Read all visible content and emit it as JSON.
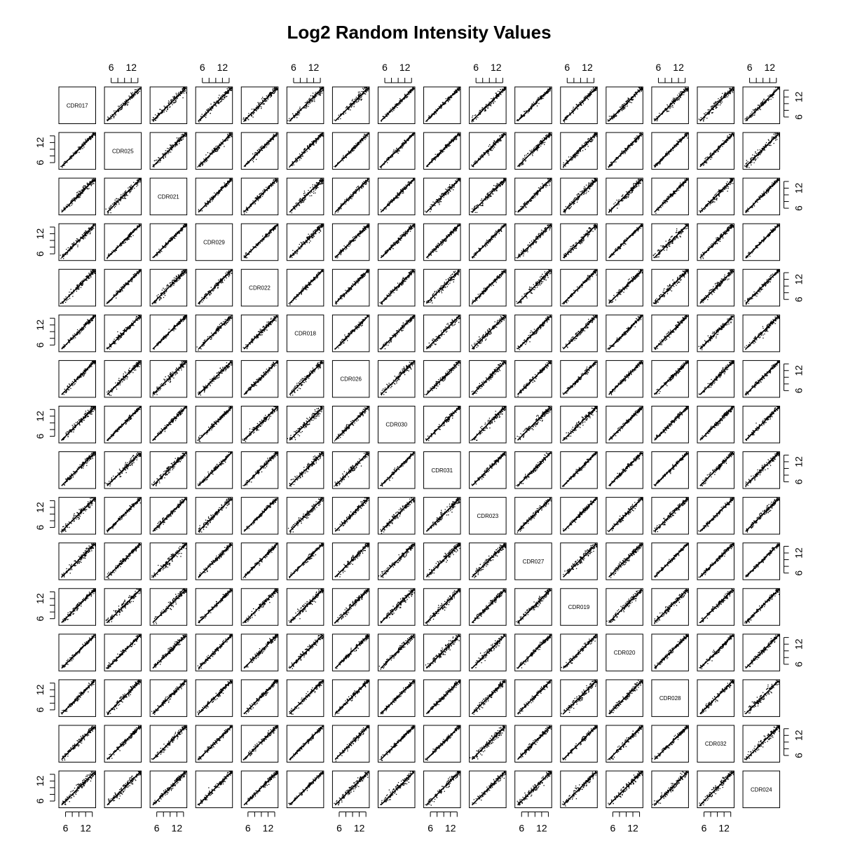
{
  "chart_data": {
    "type": "scatter",
    "title": "Log2 Random Intensity Values",
    "variables": [
      "CDR017",
      "CDR025",
      "CDR021",
      "CDR029",
      "CDR022",
      "CDR018",
      "CDR026",
      "CDR030",
      "CDR031",
      "CDR023",
      "CDR027",
      "CDR019",
      "CDR020",
      "CDR028",
      "CDR032",
      "CDR024"
    ],
    "axis_range": [
      4,
      15
    ],
    "axis_ticks": [
      6,
      8,
      10,
      12,
      14
    ],
    "axis_tick_labels": [
      {
        "value": 6,
        "label": "6"
      },
      {
        "value": 12,
        "label": "12"
      }
    ],
    "panel_relationship": "each off-diagonal panel shows a tight positive linear scatter along y = x",
    "grid": false,
    "legend": "none"
  }
}
